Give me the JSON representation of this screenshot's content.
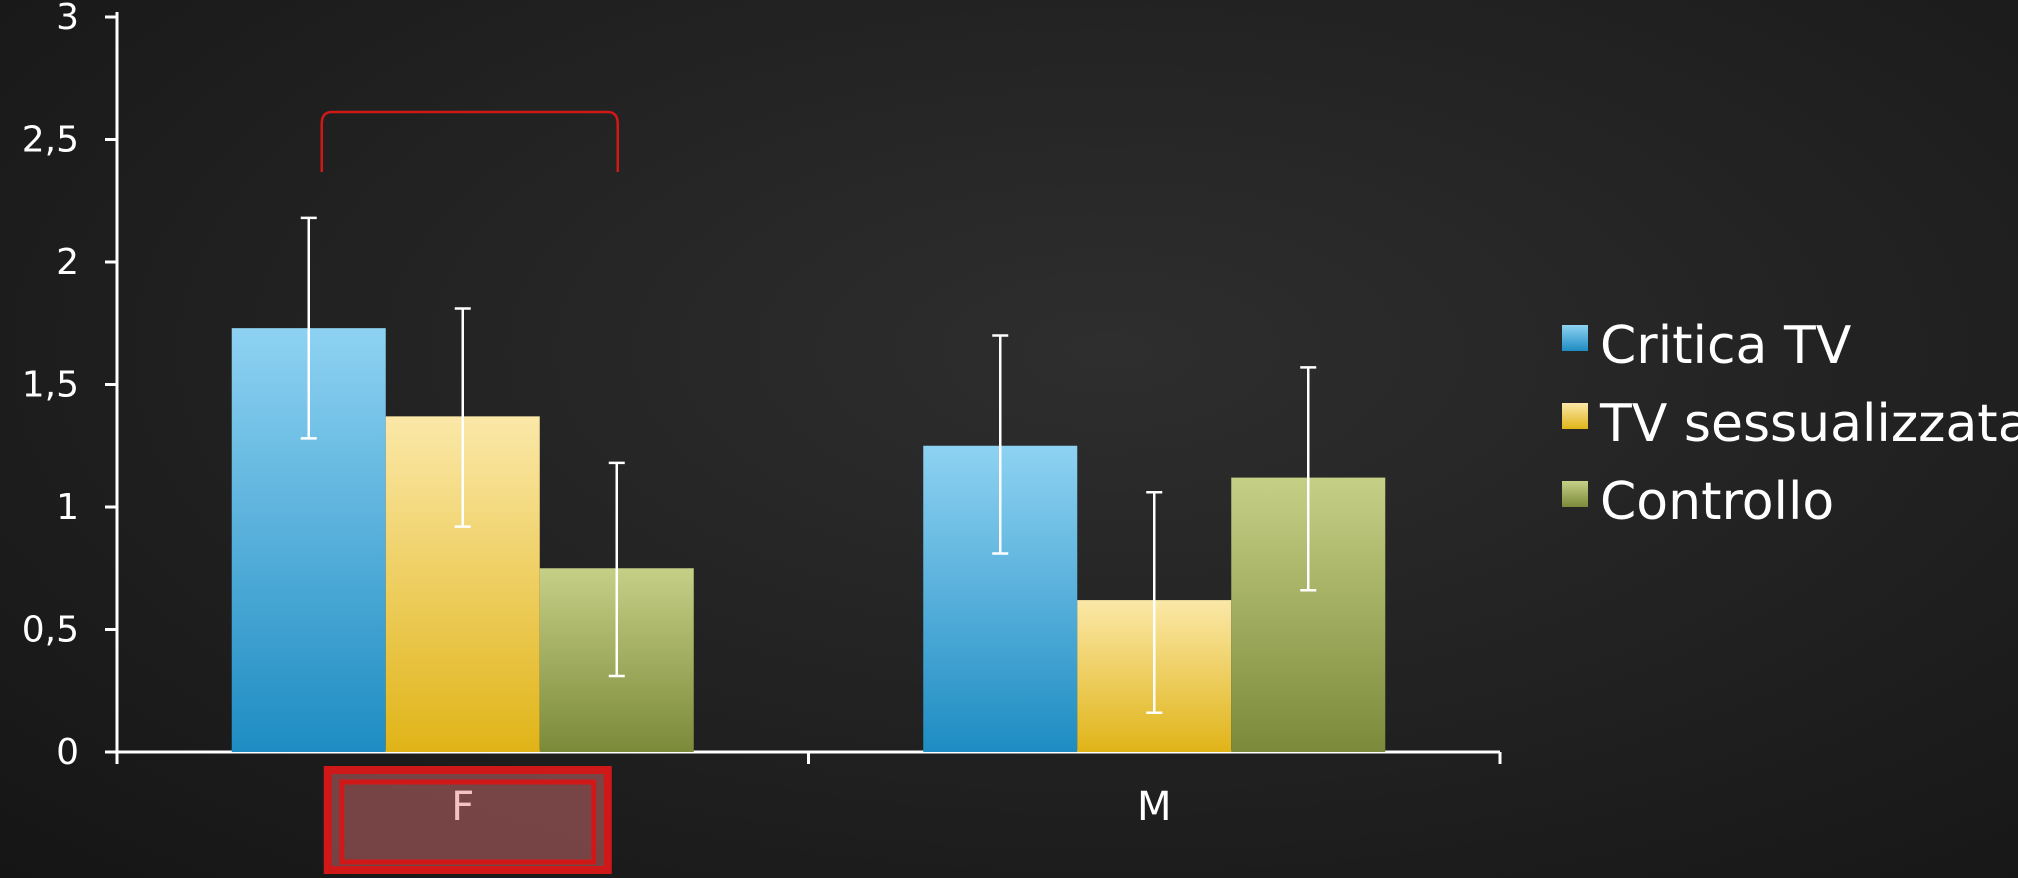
{
  "chart_data": {
    "type": "bar",
    "categories": [
      "F",
      "M"
    ],
    "series": [
      {
        "name": "Critica TV",
        "values": [
          1.73,
          1.25
        ],
        "err_low": [
          1.28,
          0.81
        ],
        "err_high": [
          2.18,
          1.7
        ],
        "color": "#3fa3d6"
      },
      {
        "name": "TV sessualizzata",
        "values": [
          1.37,
          0.62
        ],
        "err_low": [
          0.92,
          0.16
        ],
        "err_high": [
          1.81,
          1.06
        ],
        "color": "#f0cf55"
      },
      {
        "name": "Controllo",
        "values": [
          0.75,
          1.12
        ],
        "err_low": [
          0.31,
          0.66
        ],
        "err_high": [
          1.18,
          1.57
        ],
        "color": "#9aa755"
      }
    ],
    "yticks": [
      "0",
      "0,5",
      "1",
      "1,5",
      "2",
      "2,5",
      "3"
    ],
    "ylim": [
      0,
      3
    ],
    "legend": "right",
    "highlight_color": "#d01818",
    "highlight_category": "F"
  }
}
